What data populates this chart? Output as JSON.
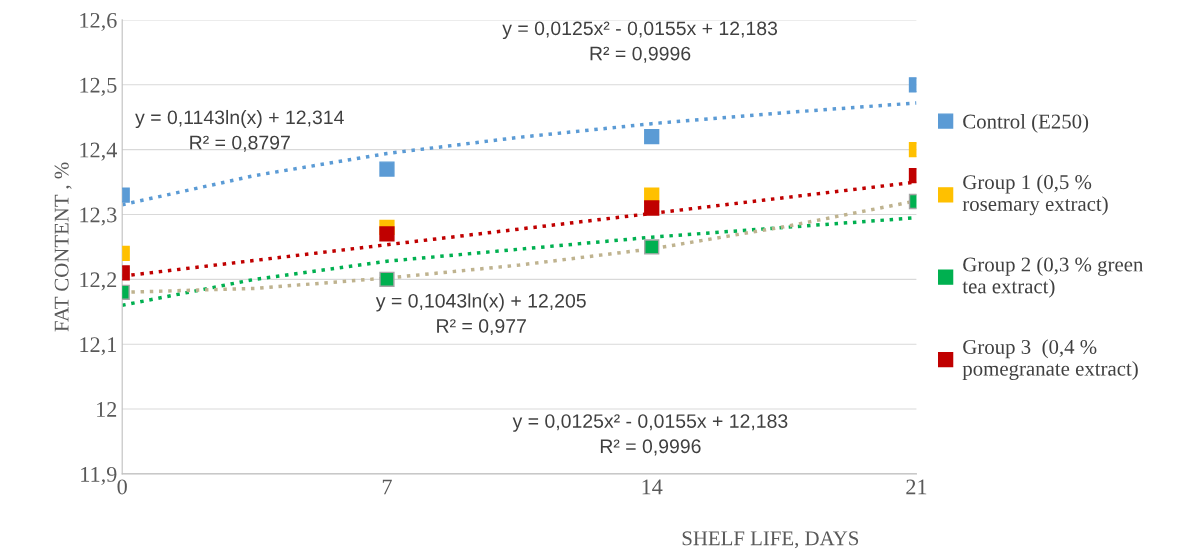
{
  "chart_data": {
    "type": "scatter",
    "xlabel": "SHELF LIFE, DAYS",
    "ylabel": "FAT CONTENT , %",
    "x": [
      0,
      7,
      14,
      21
    ],
    "xlim": [
      0,
      21
    ],
    "xticks": [
      0,
      7,
      14,
      21
    ],
    "ylim": [
      11.9,
      12.6
    ],
    "yticks": [
      {
        "value": 11.9,
        "label": "11,9"
      },
      12,
      {
        "value": 12.1,
        "label": "12,1"
      },
      {
        "value": 12.2,
        "label": "12,2"
      },
      {
        "value": 12.3,
        "label": "12,3"
      },
      {
        "value": 12.4,
        "label": "12,4"
      },
      {
        "value": 12.5,
        "label": "12,5"
      },
      {
        "value": 12.6,
        "label": "12,6"
      }
    ],
    "grid": "y",
    "legend": "right",
    "marker": "square",
    "series": [
      {
        "name": "Control (E250)",
        "color": "#5b9bd5",
        "values": [
          12.33,
          12.37,
          12.42,
          12.5
        ]
      },
      {
        "name": "Group 1 (0,5 %\nrosemary extract)",
        "color": "#ffc000",
        "values": [
          12.24,
          12.28,
          12.33,
          12.4
        ]
      },
      {
        "name": "Group 2 (0,3 % green\ntea extract)",
        "color": "#00b050",
        "values": [
          12.18,
          12.2,
          12.25,
          12.32
        ]
      },
      {
        "name": "Group 3  (0,4 %\npomegranate extract)",
        "color": "#c00000",
        "values": [
          12.21,
          12.27,
          12.31,
          12.36
        ]
      },
      {
        "type": "line",
        "color": "#5b9bd5",
        "line_style": "dotted",
        "marker": "none",
        "x": [
          0,
          3.5,
          7,
          10.5,
          14,
          17.5,
          21
        ],
        "values": [
          12.315,
          12.36,
          12.394,
          12.419,
          12.44,
          12.457,
          12.472
        ]
      },
      {
        "type": "line",
        "color": "#c00000",
        "line_style": "dotted",
        "marker": "none",
        "x": [
          0,
          21
        ],
        "values": [
          12.205,
          12.35
        ]
      },
      {
        "type": "line",
        "color": "#00b050",
        "line_style": "dotted",
        "marker": "none",
        "x": [
          0,
          3.5,
          7,
          14,
          21
        ],
        "values": [
          12.16,
          12.2,
          12.228,
          12.265,
          12.295
        ]
      },
      {
        "type": "line",
        "color": "#bfb38f",
        "line_style": "dotted",
        "marker": "none",
        "x": [
          0,
          3.5,
          7,
          10.5,
          14,
          17.5,
          21
        ],
        "values": [
          12.18,
          12.186,
          12.202,
          12.222,
          12.247,
          12.281,
          12.321
        ]
      }
    ],
    "annotations": [
      "y = 0,0125x² - 0,0155x + 12,183\nR² = 0,9996",
      "y = 0,1143ln(x) + 12,314\nR² = 0,8797",
      "y = 0,1043ln(x) + 12,205\nR² = 0,977",
      "y = 0,0125x² - 0,0155x + 12,183\nR² = 0,9996"
    ]
  }
}
